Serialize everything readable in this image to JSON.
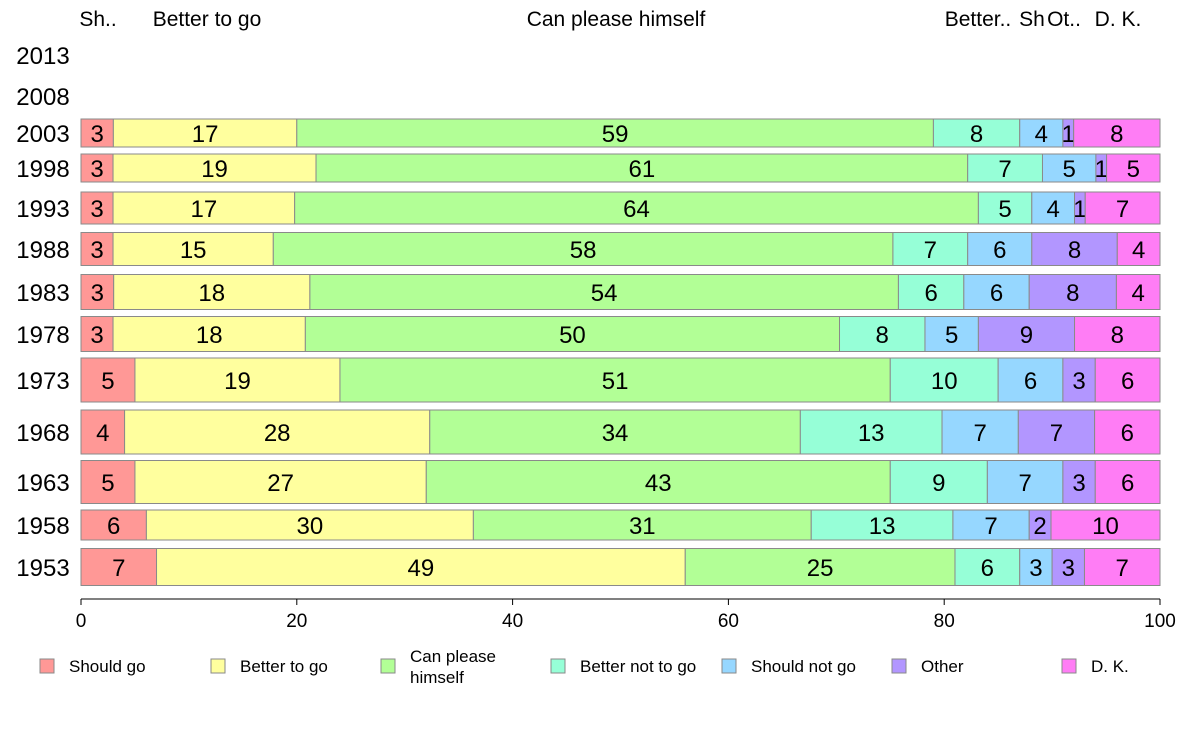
{
  "chart_data": {
    "type": "bar",
    "orientation": "horizontal",
    "stacked": true,
    "categories": [
      "2013",
      "2008",
      "2003",
      "1998",
      "1993",
      "1988",
      "1983",
      "1978",
      "1973",
      "1968",
      "1963",
      "1958",
      "1953"
    ],
    "series": [
      {
        "name": "Should go",
        "color": "#ff9896",
        "values": [
          null,
          null,
          3,
          3,
          3,
          3,
          3,
          3,
          5,
          4,
          5,
          6,
          7
        ]
      },
      {
        "name": "Better to go",
        "color": "#ffff9e",
        "values": [
          null,
          null,
          17,
          19,
          17,
          15,
          18,
          18,
          19,
          28,
          27,
          30,
          49
        ]
      },
      {
        "name": "Can please himself",
        "color": "#b2ff96",
        "values": [
          null,
          null,
          59,
          61,
          64,
          58,
          54,
          50,
          51,
          34,
          43,
          31,
          25
        ]
      },
      {
        "name": "Better not to go",
        "color": "#96ffd7",
        "values": [
          null,
          null,
          8,
          7,
          5,
          7,
          6,
          8,
          10,
          13,
          9,
          13,
          6
        ]
      },
      {
        "name": "Should not go",
        "color": "#96d7ff",
        "values": [
          null,
          null,
          4,
          5,
          4,
          6,
          6,
          5,
          6,
          7,
          7,
          7,
          3
        ]
      },
      {
        "name": "Other",
        "color": "#b296ff",
        "values": [
          null,
          null,
          1,
          1,
          1,
          8,
          8,
          9,
          3,
          7,
          3,
          2,
          3
        ]
      },
      {
        "name": "D. K.",
        "color": "#ff7df5",
        "values": [
          null,
          null,
          8,
          5,
          7,
          4,
          4,
          8,
          6,
          6,
          6,
          10,
          7
        ]
      }
    ],
    "top_labels": [
      "Sh..",
      "Better to go",
      "Can please himself",
      "Better..",
      "Sh",
      "Ot..",
      "D. K."
    ],
    "xlim": [
      0,
      100
    ],
    "xticks": [
      0,
      20,
      40,
      60,
      80,
      100
    ],
    "legend_labels": [
      "Should go",
      "Better to go",
      "Can please\nhimself",
      "Better not to go",
      "Should not go",
      "Other",
      "D. K."
    ],
    "legend_position": "bottom",
    "grid": false
  }
}
